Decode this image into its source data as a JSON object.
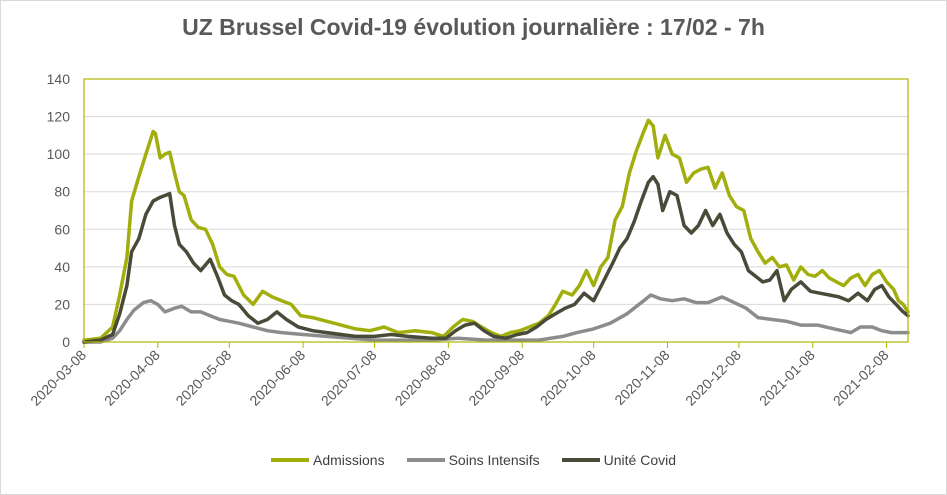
{
  "chart_data": {
    "type": "line",
    "title": "UZ Brussel Covid-19 évolution journalière : 17/02 - 7h",
    "xlabel": "",
    "ylabel": "",
    "ylim": [
      0,
      140
    ],
    "yticks": [
      0,
      20,
      40,
      60,
      80,
      100,
      120,
      140
    ],
    "xlim": [
      "2020-03-08",
      "2021-02-17"
    ],
    "xticks": [
      "2020-03-08",
      "2020-04-08",
      "2020-05-08",
      "2020-06-08",
      "2020-07-08",
      "2020-08-08",
      "2020-09-08",
      "2020-10-08",
      "2020-11-08",
      "2020-12-08",
      "2021-01-08",
      "2021-02-08"
    ],
    "grid": true,
    "legend_position": "bottom",
    "series": [
      {
        "name": "Admissions",
        "color": "#a2ae0b",
        "points": [
          [
            "2020-03-08",
            1
          ],
          [
            "2020-03-15",
            2
          ],
          [
            "2020-03-20",
            8
          ],
          [
            "2020-03-23",
            25
          ],
          [
            "2020-03-26",
            45
          ],
          [
            "2020-03-28",
            75
          ],
          [
            "2020-03-31",
            88
          ],
          [
            "2020-04-03",
            100
          ],
          [
            "2020-04-06",
            112
          ],
          [
            "2020-04-07",
            111
          ],
          [
            "2020-04-09",
            98
          ],
          [
            "2020-04-11",
            100
          ],
          [
            "2020-04-13",
            101
          ],
          [
            "2020-04-15",
            90
          ],
          [
            "2020-04-17",
            80
          ],
          [
            "2020-04-19",
            78
          ],
          [
            "2020-04-22",
            65
          ],
          [
            "2020-04-25",
            61
          ],
          [
            "2020-04-28",
            60
          ],
          [
            "2020-05-01",
            52
          ],
          [
            "2020-05-04",
            40
          ],
          [
            "2020-05-07",
            36
          ],
          [
            "2020-05-10",
            35
          ],
          [
            "2020-05-14",
            25
          ],
          [
            "2020-05-18",
            20
          ],
          [
            "2020-05-22",
            27
          ],
          [
            "2020-05-26",
            24
          ],
          [
            "2020-05-30",
            22
          ],
          [
            "2020-06-03",
            20
          ],
          [
            "2020-06-07",
            14
          ],
          [
            "2020-06-12",
            13
          ],
          [
            "2020-06-18",
            11
          ],
          [
            "2020-06-24",
            9
          ],
          [
            "2020-06-30",
            7
          ],
          [
            "2020-07-06",
            6
          ],
          [
            "2020-07-12",
            8
          ],
          [
            "2020-07-18",
            5
          ],
          [
            "2020-07-25",
            6
          ],
          [
            "2020-08-01",
            5
          ],
          [
            "2020-08-06",
            3
          ],
          [
            "2020-08-10",
            8
          ],
          [
            "2020-08-14",
            12
          ],
          [
            "2020-08-18",
            11
          ],
          [
            "2020-08-22",
            8
          ],
          [
            "2020-08-26",
            5
          ],
          [
            "2020-08-30",
            3
          ],
          [
            "2020-09-03",
            5
          ],
          [
            "2020-09-07",
            6
          ],
          [
            "2020-09-11",
            8
          ],
          [
            "2020-09-15",
            10
          ],
          [
            "2020-09-19",
            14
          ],
          [
            "2020-09-22",
            20
          ],
          [
            "2020-09-25",
            27
          ],
          [
            "2020-09-29",
            25
          ],
          [
            "2020-10-02",
            30
          ],
          [
            "2020-10-05",
            38
          ],
          [
            "2020-10-08",
            30
          ],
          [
            "2020-10-11",
            40
          ],
          [
            "2020-10-14",
            45
          ],
          [
            "2020-10-17",
            65
          ],
          [
            "2020-10-20",
            72
          ],
          [
            "2020-10-23",
            90
          ],
          [
            "2020-10-26",
            102
          ],
          [
            "2020-10-29",
            112
          ],
          [
            "2020-10-31",
            118
          ],
          [
            "2020-11-02",
            115
          ],
          [
            "2020-11-04",
            98
          ],
          [
            "2020-11-07",
            110
          ],
          [
            "2020-11-10",
            100
          ],
          [
            "2020-11-13",
            98
          ],
          [
            "2020-11-16",
            85
          ],
          [
            "2020-11-19",
            90
          ],
          [
            "2020-11-22",
            92
          ],
          [
            "2020-11-25",
            93
          ],
          [
            "2020-11-28",
            82
          ],
          [
            "2020-12-01",
            90
          ],
          [
            "2020-12-04",
            78
          ],
          [
            "2020-12-07",
            72
          ],
          [
            "2020-12-10",
            70
          ],
          [
            "2020-12-13",
            55
          ],
          [
            "2020-12-16",
            48
          ],
          [
            "2020-12-19",
            42
          ],
          [
            "2020-12-22",
            45
          ],
          [
            "2020-12-25",
            40
          ],
          [
            "2020-12-28",
            41
          ],
          [
            "2020-12-31",
            33
          ],
          [
            "2021-01-03",
            40
          ],
          [
            "2021-01-06",
            36
          ],
          [
            "2021-01-09",
            35
          ],
          [
            "2021-01-12",
            38
          ],
          [
            "2021-01-15",
            34
          ],
          [
            "2021-01-18",
            32
          ],
          [
            "2021-01-21",
            30
          ],
          [
            "2021-01-24",
            34
          ],
          [
            "2021-01-27",
            36
          ],
          [
            "2021-01-30",
            30
          ],
          [
            "2021-02-02",
            36
          ],
          [
            "2021-02-05",
            38
          ],
          [
            "2021-02-08",
            32
          ],
          [
            "2021-02-11",
            28
          ],
          [
            "2021-02-13",
            22
          ],
          [
            "2021-02-15",
            20
          ],
          [
            "2021-02-17",
            16
          ]
        ]
      },
      {
        "name": "Soins Intensifs",
        "color": "#8c8c8c",
        "points": [
          [
            "2020-03-08",
            0
          ],
          [
            "2020-03-15",
            0
          ],
          [
            "2020-03-20",
            2
          ],
          [
            "2020-03-23",
            6
          ],
          [
            "2020-03-26",
            12
          ],
          [
            "2020-03-29",
            17
          ],
          [
            "2020-04-02",
            21
          ],
          [
            "2020-04-05",
            22
          ],
          [
            "2020-04-08",
            20
          ],
          [
            "2020-04-11",
            16
          ],
          [
            "2020-04-15",
            18
          ],
          [
            "2020-04-18",
            19
          ],
          [
            "2020-04-22",
            16
          ],
          [
            "2020-04-26",
            16
          ],
          [
            "2020-04-30",
            14
          ],
          [
            "2020-05-04",
            12
          ],
          [
            "2020-05-08",
            11
          ],
          [
            "2020-05-12",
            10
          ],
          [
            "2020-05-18",
            8
          ],
          [
            "2020-05-24",
            6
          ],
          [
            "2020-05-30",
            5
          ],
          [
            "2020-06-08",
            4
          ],
          [
            "2020-06-18",
            3
          ],
          [
            "2020-06-28",
            2
          ],
          [
            "2020-07-08",
            1
          ],
          [
            "2020-07-20",
            1
          ],
          [
            "2020-08-01",
            1
          ],
          [
            "2020-08-12",
            2
          ],
          [
            "2020-08-24",
            1
          ],
          [
            "2020-09-05",
            1
          ],
          [
            "2020-09-15",
            1
          ],
          [
            "2020-09-25",
            3
          ],
          [
            "2020-10-01",
            5
          ],
          [
            "2020-10-08",
            7
          ],
          [
            "2020-10-15",
            10
          ],
          [
            "2020-10-22",
            15
          ],
          [
            "2020-10-29",
            22
          ],
          [
            "2020-11-01",
            25
          ],
          [
            "2020-11-05",
            23
          ],
          [
            "2020-11-10",
            22
          ],
          [
            "2020-11-15",
            23
          ],
          [
            "2020-11-20",
            21
          ],
          [
            "2020-11-25",
            21
          ],
          [
            "2020-12-01",
            24
          ],
          [
            "2020-12-06",
            21
          ],
          [
            "2020-12-11",
            18
          ],
          [
            "2020-12-16",
            13
          ],
          [
            "2020-12-22",
            12
          ],
          [
            "2020-12-28",
            11
          ],
          [
            "2021-01-03",
            9
          ],
          [
            "2021-01-10",
            9
          ],
          [
            "2021-01-17",
            7
          ],
          [
            "2021-01-24",
            5
          ],
          [
            "2021-01-28",
            8
          ],
          [
            "2021-02-02",
            8
          ],
          [
            "2021-02-06",
            6
          ],
          [
            "2021-02-10",
            5
          ],
          [
            "2021-02-17",
            5
          ]
        ]
      },
      {
        "name": "Unité Covid",
        "color": "#4a4a38",
        "points": [
          [
            "2020-03-08",
            0
          ],
          [
            "2020-03-15",
            1
          ],
          [
            "2020-03-20",
            4
          ],
          [
            "2020-03-23",
            15
          ],
          [
            "2020-03-26",
            30
          ],
          [
            "2020-03-28",
            48
          ],
          [
            "2020-03-31",
            55
          ],
          [
            "2020-04-03",
            68
          ],
          [
            "2020-04-06",
            75
          ],
          [
            "2020-04-09",
            77
          ],
          [
            "2020-04-11",
            78
          ],
          [
            "2020-04-13",
            79
          ],
          [
            "2020-04-15",
            62
          ],
          [
            "2020-04-17",
            52
          ],
          [
            "2020-04-20",
            48
          ],
          [
            "2020-04-23",
            42
          ],
          [
            "2020-04-26",
            38
          ],
          [
            "2020-04-30",
            44
          ],
          [
            "2020-05-03",
            35
          ],
          [
            "2020-05-06",
            25
          ],
          [
            "2020-05-09",
            22
          ],
          [
            "2020-05-12",
            20
          ],
          [
            "2020-05-16",
            14
          ],
          [
            "2020-05-20",
            10
          ],
          [
            "2020-05-24",
            12
          ],
          [
            "2020-05-28",
            16
          ],
          [
            "2020-06-01",
            12
          ],
          [
            "2020-06-06",
            8
          ],
          [
            "2020-06-12",
            6
          ],
          [
            "2020-06-18",
            5
          ],
          [
            "2020-06-24",
            4
          ],
          [
            "2020-06-30",
            3
          ],
          [
            "2020-07-08",
            3
          ],
          [
            "2020-07-15",
            4
          ],
          [
            "2020-07-22",
            3
          ],
          [
            "2020-08-01",
            2
          ],
          [
            "2020-08-07",
            2
          ],
          [
            "2020-08-11",
            6
          ],
          [
            "2020-08-15",
            9
          ],
          [
            "2020-08-19",
            10
          ],
          [
            "2020-08-23",
            6
          ],
          [
            "2020-08-27",
            3
          ],
          [
            "2020-09-01",
            2
          ],
          [
            "2020-09-06",
            4
          ],
          [
            "2020-09-10",
            5
          ],
          [
            "2020-09-14",
            8
          ],
          [
            "2020-09-18",
            12
          ],
          [
            "2020-09-22",
            15
          ],
          [
            "2020-09-26",
            18
          ],
          [
            "2020-09-30",
            20
          ],
          [
            "2020-10-04",
            26
          ],
          [
            "2020-10-08",
            22
          ],
          [
            "2020-10-12",
            32
          ],
          [
            "2020-10-16",
            42
          ],
          [
            "2020-10-19",
            50
          ],
          [
            "2020-10-22",
            55
          ],
          [
            "2020-10-25",
            64
          ],
          [
            "2020-10-28",
            75
          ],
          [
            "2020-10-31",
            85
          ],
          [
            "2020-11-02",
            88
          ],
          [
            "2020-11-04",
            84
          ],
          [
            "2020-11-06",
            70
          ],
          [
            "2020-11-09",
            80
          ],
          [
            "2020-11-12",
            78
          ],
          [
            "2020-11-15",
            62
          ],
          [
            "2020-11-18",
            58
          ],
          [
            "2020-11-21",
            62
          ],
          [
            "2020-11-24",
            70
          ],
          [
            "2020-11-27",
            62
          ],
          [
            "2020-11-30",
            68
          ],
          [
            "2020-12-03",
            58
          ],
          [
            "2020-12-06",
            52
          ],
          [
            "2020-12-09",
            48
          ],
          [
            "2020-12-12",
            38
          ],
          [
            "2020-12-15",
            35
          ],
          [
            "2020-12-18",
            32
          ],
          [
            "2020-12-21",
            33
          ],
          [
            "2020-12-24",
            38
          ],
          [
            "2020-12-27",
            22
          ],
          [
            "2020-12-30",
            28
          ],
          [
            "2021-01-03",
            32
          ],
          [
            "2021-01-07",
            27
          ],
          [
            "2021-01-11",
            26
          ],
          [
            "2021-01-15",
            25
          ],
          [
            "2021-01-19",
            24
          ],
          [
            "2021-01-23",
            22
          ],
          [
            "2021-01-27",
            26
          ],
          [
            "2021-01-31",
            22
          ],
          [
            "2021-02-03",
            28
          ],
          [
            "2021-02-06",
            30
          ],
          [
            "2021-02-09",
            24
          ],
          [
            "2021-02-12",
            20
          ],
          [
            "2021-02-15",
            16
          ],
          [
            "2021-02-17",
            14
          ]
        ]
      }
    ]
  }
}
